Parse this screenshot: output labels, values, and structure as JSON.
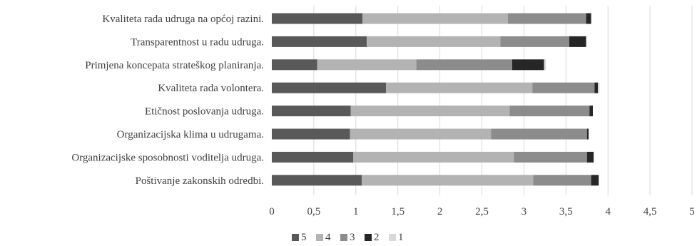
{
  "chart_data": {
    "type": "bar",
    "orientation": "horizontal",
    "stacked": true,
    "title": "",
    "xlabel": "",
    "ylabel": "",
    "categories": [
      "Kvaliteta rada udruga na općoj razini.",
      "Transparentnost u radu udruga.",
      "Primjena koncepata strateškog planiranja.",
      "Kvaliteta rada volontera.",
      "Etičnost poslovanja udruga.",
      "Organizacijska klima u udrugama.",
      "Organizacijske sposobnosti voditelja udruga.",
      "Poštivanje zakonskih odredbi."
    ],
    "series": [
      {
        "name": "5",
        "color": "#595959",
        "values": [
          1.08,
          1.13,
          0.54,
          1.36,
          0.94,
          0.93,
          0.97,
          1.07
        ]
      },
      {
        "name": "4",
        "color": "#b3b3b3",
        "values": [
          1.73,
          1.59,
          1.18,
          1.74,
          1.89,
          1.68,
          1.91,
          2.04
        ]
      },
      {
        "name": "3",
        "color": "#8c8c8c",
        "values": [
          0.93,
          0.82,
          1.14,
          0.74,
          0.95,
          1.14,
          0.87,
          0.69
        ]
      },
      {
        "name": "2",
        "color": "#262626",
        "values": [
          0.06,
          0.2,
          0.38,
          0.04,
          0.04,
          0.02,
          0.08,
          0.09
        ]
      },
      {
        "name": "1",
        "color": "#d9d9d9",
        "values": [
          0.0,
          0.0,
          0.02,
          0.02,
          0.0,
          0.0,
          0.0,
          0.0
        ]
      }
    ],
    "xlim": [
      0,
      5
    ],
    "xticks": [
      "0",
      "0,5",
      "1",
      "1,5",
      "2",
      "2,5",
      "3",
      "3,5",
      "4",
      "4,5",
      "5"
    ],
    "grid": true,
    "legend_position": "bottom"
  }
}
